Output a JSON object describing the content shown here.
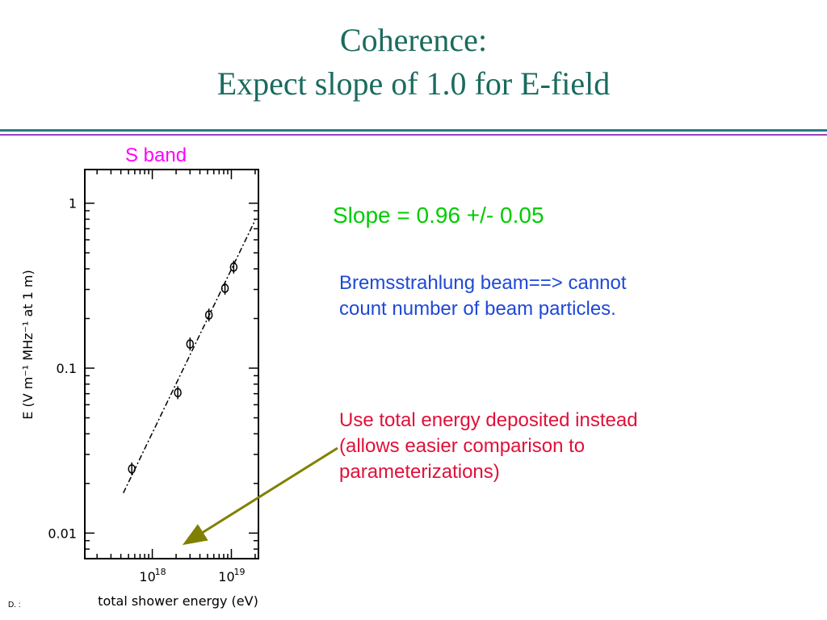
{
  "slide": {
    "title_line1": "Coherence:",
    "title_line2": "Expect slope of 1.0 for E-field",
    "band_label": "S band",
    "slope_text": "Slope = 0.96 +/- 0.05",
    "note_beam": "Bremsstrahlung beam==> cannot count number of beam particles.",
    "note_energy": "Use total energy deposited instead  (allows easier comparison to parameterizations)",
    "footer": "D. :",
    "colors": {
      "title": "#1a6b5e",
      "band_label": "#ff00ff",
      "slope": "#00cc00",
      "note_beam": "#1f48d6",
      "note_energy": "#e0103a",
      "arrow": "#808000"
    }
  },
  "chart_data": {
    "type": "scatter",
    "title": "",
    "xlabel": "total shower energy (eV)",
    "ylabel": "E  (V m⁻¹ MHz⁻¹ at 1 m)",
    "x_scale": "log",
    "y_scale": "log",
    "xlim": [
      1.4e+17,
      2.2e+19
    ],
    "ylim": [
      0.007,
      1.6
    ],
    "x_ticks": [
      {
        "value": 1e+18,
        "label": "10",
        "exp": "18"
      },
      {
        "value": 1e+19,
        "label": "10",
        "exp": "19"
      }
    ],
    "y_ticks": [
      {
        "value": 1,
        "label": "1"
      },
      {
        "value": 0.1,
        "label": "0.1"
      },
      {
        "value": 0.01,
        "label": "0.01"
      }
    ],
    "grid": false,
    "series": [
      {
        "points": [
          {
            "x": 5.5e+17,
            "y": 0.0245
          },
          {
            "x": 2.1e+18,
            "y": 0.071
          },
          {
            "x": 3e+18,
            "y": 0.14
          },
          {
            "x": 5.2e+18,
            "y": 0.21
          },
          {
            "x": 8.3e+18,
            "y": 0.305
          },
          {
            "x": 1.07e+19,
            "y": 0.41
          }
        ],
        "fit_line": {
          "x1": 4.3e+17,
          "y1": 0.0175,
          "x2": 2e+19,
          "y2": 0.79,
          "slope": 0.96
        }
      }
    ]
  }
}
